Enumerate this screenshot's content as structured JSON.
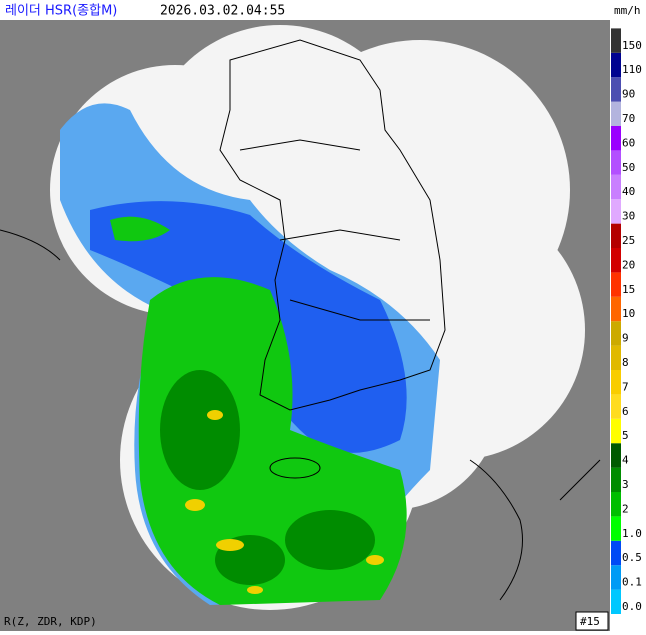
{
  "header": {
    "title": "레이더 HSR(종합M)",
    "time": "2026.03.02.04:55"
  },
  "legend": {
    "unit": "mm/h",
    "levels": [
      {
        "label": "0.0",
        "color": "#00c8ff"
      },
      {
        "label": "0.1",
        "color": "#009bf5"
      },
      {
        "label": "0.5",
        "color": "#004af5"
      },
      {
        "label": "1.0",
        "color": "#00ff00"
      },
      {
        "label": "2",
        "color": "#00be00"
      },
      {
        "label": "3",
        "color": "#008c00"
      },
      {
        "label": "4",
        "color": "#005a00"
      },
      {
        "label": "5",
        "color": "#ffff00"
      },
      {
        "label": "6",
        "color": "#ffdc1f"
      },
      {
        "label": "7",
        "color": "#f9cd00"
      },
      {
        "label": "8",
        "color": "#e0b900"
      },
      {
        "label": "9",
        "color": "#ccaa00"
      },
      {
        "label": "10",
        "color": "#ff6600"
      },
      {
        "label": "15",
        "color": "#ff3200"
      },
      {
        "label": "20",
        "color": "#d20000"
      },
      {
        "label": "25",
        "color": "#b40000"
      },
      {
        "label": "30",
        "color": "#e0a9ff"
      },
      {
        "label": "40",
        "color": "#c97fff"
      },
      {
        "label": "50",
        "color": "#b350ff"
      },
      {
        "label": "60",
        "color": "#9a00ff"
      },
      {
        "label": "70",
        "color": "#b3b4de"
      },
      {
        "label": "90",
        "color": "#4c4eb1"
      },
      {
        "label": "110",
        "color": "#000390"
      },
      {
        "label": "150",
        "color": "#333333"
      }
    ]
  },
  "footer": {
    "method": "R(Z, ZDR, KDP)",
    "frame": "#15"
  }
}
